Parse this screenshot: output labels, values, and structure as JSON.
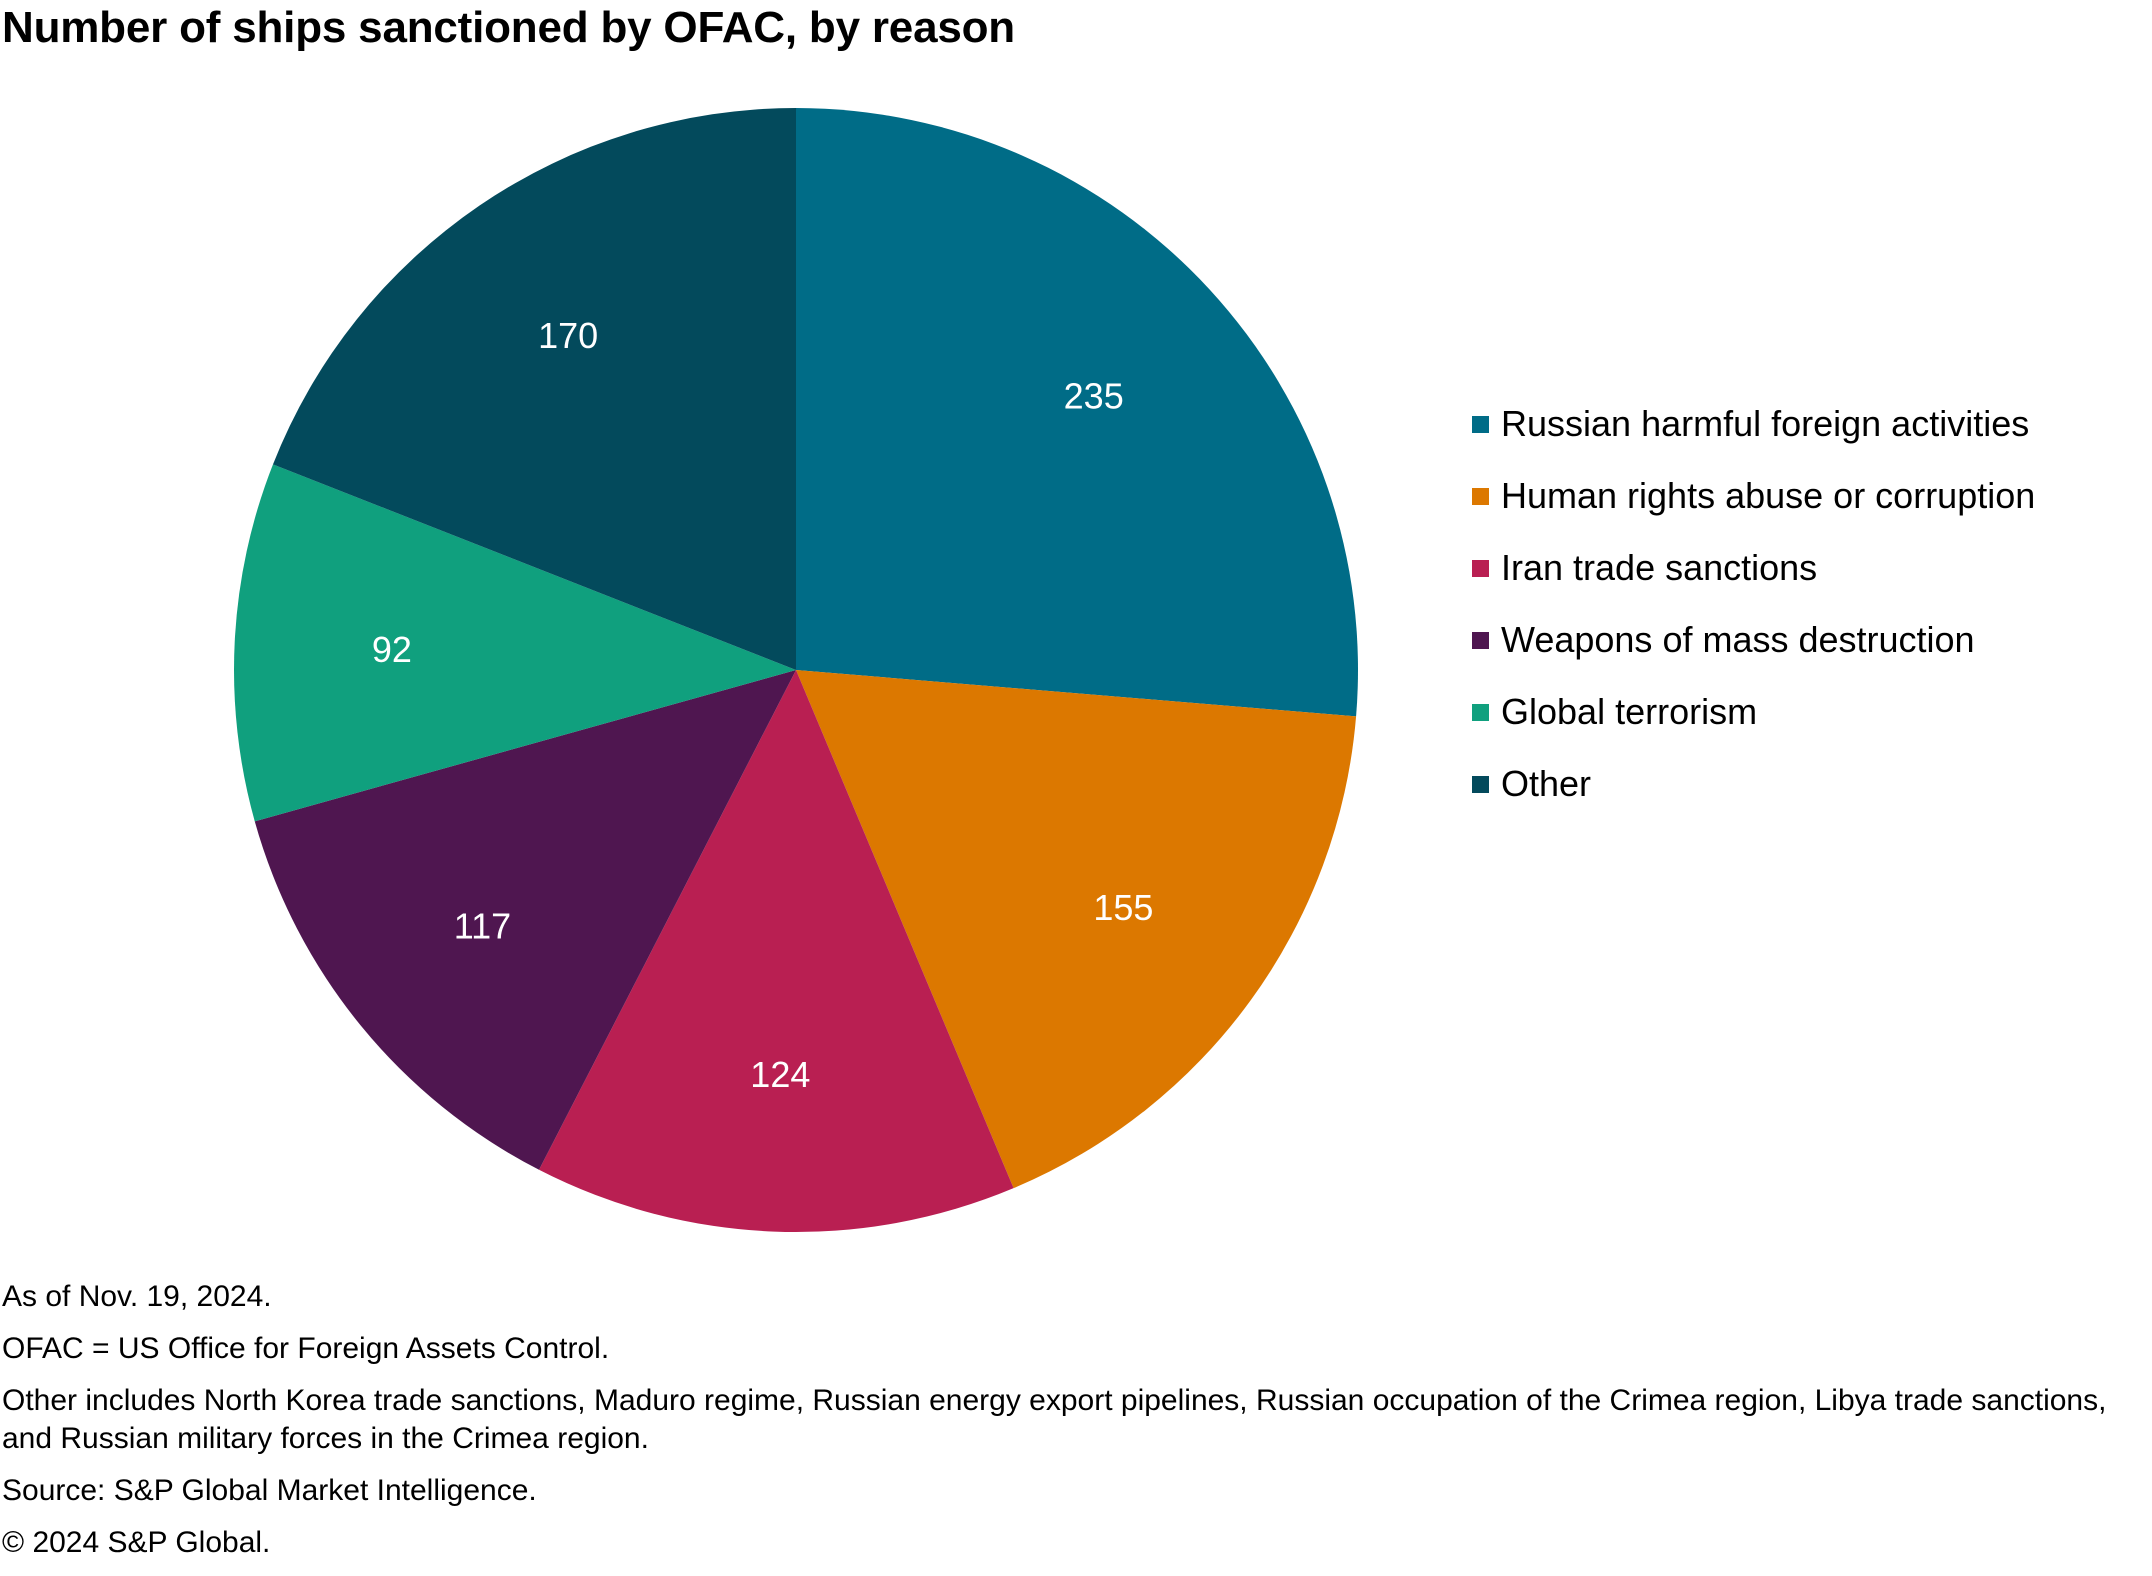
{
  "title": "Number of ships sanctioned by OFAC, by reason",
  "chart_data": {
    "type": "pie",
    "title": "Number of ships sanctioned by OFAC, by reason",
    "categories": [
      "Russian harmful foreign activities",
      "Human rights abuse or corruption",
      "Iran trade sanctions",
      "Weapons of mass destruction",
      "Global terrorism",
      "Other"
    ],
    "values": [
      235,
      155,
      124,
      117,
      92,
      170
    ],
    "colors": [
      "#006C87",
      "#DC7800",
      "#B91F52",
      "#4F1650",
      "#10A07E",
      "#034A5C"
    ],
    "data_labels": [
      "235",
      "155",
      "124",
      "117",
      "92",
      "170"
    ],
    "start": "12 o'clock",
    "direction": "clockwise",
    "legend_position": "right"
  },
  "legend": [
    {
      "label": "Russian harmful foreign activities",
      "color": "#006C87"
    },
    {
      "label": "Human rights abuse or corruption",
      "color": "#DC7800"
    },
    {
      "label": "Iran trade sanctions",
      "color": "#B91F52"
    },
    {
      "label": "Weapons of mass destruction",
      "color": "#4F1650"
    },
    {
      "label": "Global terrorism",
      "color": "#10A07E"
    },
    {
      "label": "Other",
      "color": "#034A5C"
    }
  ],
  "notes": [
    "As of Nov. 19, 2024.",
    "OFAC = US Office for Foreign Assets Control.",
    "Other includes North Korea trade sanctions, Maduro regime, Russian energy export pipelines, Russian occupation of the Crimea region, Libya trade sanctions, and Russian military forces in the Crimea region.",
    "Source: S&P Global Market Intelligence.",
    "© 2024 S&P Global."
  ]
}
